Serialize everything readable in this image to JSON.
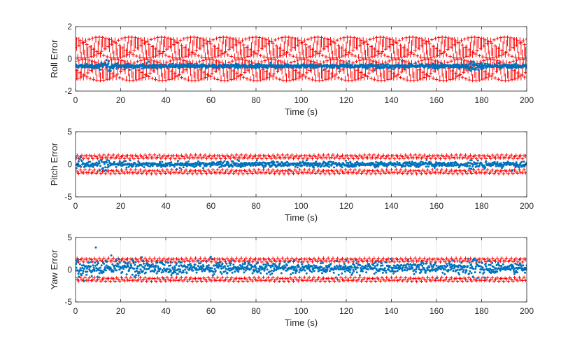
{
  "figure": {
    "background": "#ffffff",
    "grid": true,
    "legend": "none"
  },
  "chart_data": [
    {
      "type": "scatter",
      "xlabel": "Time (s)",
      "ylabel": "Roll Error",
      "xlim": [
        0,
        200
      ],
      "ylim": [
        -2,
        2
      ],
      "xticks": [
        0,
        20,
        40,
        60,
        80,
        100,
        120,
        140,
        160,
        180,
        200
      ],
      "yticks": [
        -2,
        0,
        2
      ],
      "series": [
        {
          "kind": "bounds",
          "color": "#ff0000",
          "marker": "plus",
          "upper": {
            "min": 0.05,
            "max": 1.35
          },
          "lower": {
            "min": -1.35,
            "max": -0.05
          },
          "x_step": 0.5
        },
        {
          "kind": "error",
          "color": "#0072bd",
          "marker": "dot",
          "mean": -0.45,
          "spread": 0.15,
          "x_step": 0.15,
          "bursts": [
            {
              "x": [
                10,
                16
              ],
              "spread": 0.35
            },
            {
              "x": [
                174,
                182
              ],
              "spread": 0.4
            }
          ]
        }
      ]
    },
    {
      "type": "scatter",
      "xlabel": "Time (s)",
      "ylabel": "Pitch Error",
      "xlim": [
        0,
        200
      ],
      "ylim": [
        -5,
        5
      ],
      "xticks": [
        0,
        20,
        40,
        60,
        80,
        100,
        120,
        140,
        160,
        180,
        200
      ],
      "yticks": [
        -5,
        0,
        5
      ],
      "series": [
        {
          "kind": "bounds",
          "color": "#ff0000",
          "marker": "plus",
          "upper": {
            "min": 0.85,
            "max": 1.45
          },
          "lower": {
            "min": -1.45,
            "max": -0.85
          },
          "x_step": 0.7
        },
        {
          "kind": "error",
          "color": "#0072bd",
          "marker": "dot",
          "mean": 0.0,
          "spread": 0.5,
          "x_step": 0.2,
          "bursts": [
            {
              "x": [
                0,
                3
              ],
              "spread": 1.3
            },
            {
              "x": [
                10,
                15
              ],
              "spread": 1.0
            },
            {
              "x": [
                174,
                182
              ],
              "spread": 1.0
            }
          ]
        }
      ]
    },
    {
      "type": "scatter",
      "xlabel": "Time (s)",
      "ylabel": "Yaw Error",
      "xlim": [
        0,
        200
      ],
      "ylim": [
        -5,
        5
      ],
      "xticks": [
        0,
        20,
        40,
        60,
        80,
        100,
        120,
        140,
        160,
        180,
        200
      ],
      "yticks": [
        -5,
        0,
        5
      ],
      "series": [
        {
          "kind": "bounds",
          "color": "#ff0000",
          "marker": "plus",
          "upper": {
            "min": 1.2,
            "max": 1.8
          },
          "lower": {
            "min": -1.8,
            "max": -1.2
          },
          "x_step": 0.7
        },
        {
          "kind": "error",
          "color": "#0072bd",
          "marker": "dot",
          "mean": 0.3,
          "spread": 1.0,
          "x_step": 0.18,
          "bursts": [
            {
              "x": [
                0,
                20
              ],
              "spread": 1.6
            },
            {
              "x": [
                20,
                65
              ],
              "spread": 1.35
            },
            {
              "x": [
                120,
                126
              ],
              "spread": 1.3
            },
            {
              "x": [
                174,
                182
              ],
              "spread": 1.7
            }
          ]
        }
      ]
    }
  ]
}
